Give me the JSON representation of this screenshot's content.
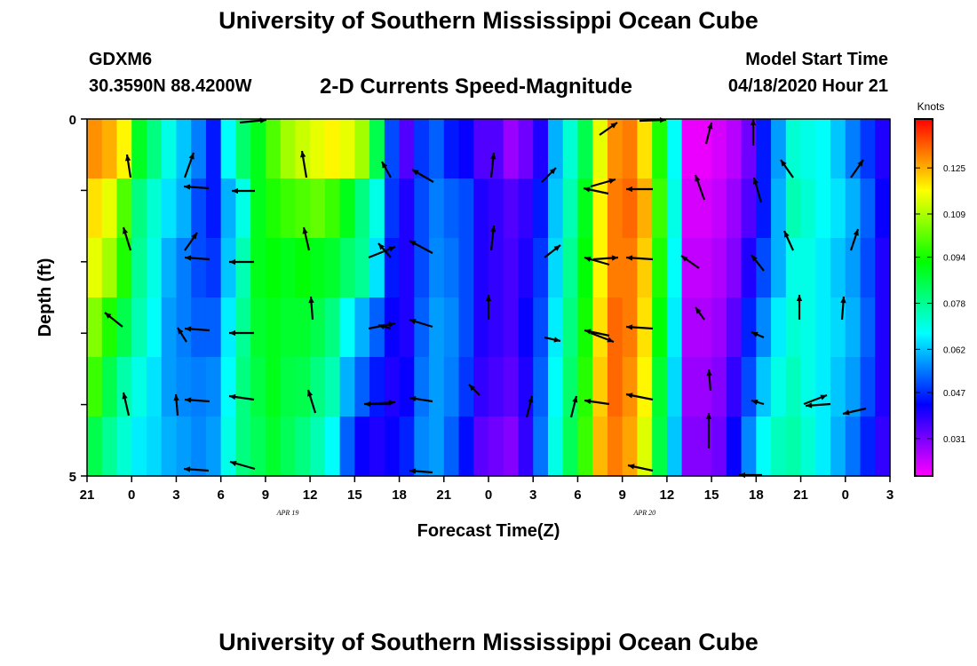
{
  "header": {
    "title": "University of Southern Mississippi Ocean Cube",
    "station": "GDXM6",
    "coords": "30.3590N 88.4200W",
    "subtitle": "2-D Currents Speed-Magnitude",
    "model_start_label": "Model Start Time",
    "model_start_value": "04/18/2020 Hour 21",
    "footer_title": "University of Southern Mississippi Ocean Cube"
  },
  "chart_data": {
    "type": "heatmap",
    "xlabel": "Forecast Time(Z)",
    "ylabel": "Depth (ft)",
    "x_ticks": [
      "21",
      "0",
      "3",
      "6",
      "9",
      "12",
      "15",
      "18",
      "21",
      "0",
      "3",
      "6",
      "9",
      "12",
      "15",
      "18",
      "21",
      "0",
      "3"
    ],
    "date_labels": [
      {
        "text": "APR 19",
        "at_tick": 4.5
      },
      {
        "text": "APR 20",
        "at_tick": 12.5
      }
    ],
    "y_ticks": [
      "0",
      "5"
    ],
    "ylim": [
      0,
      5
    ],
    "colorbar": {
      "title": "Knots",
      "range": [
        0.018,
        0.142
      ],
      "ticks": [
        "0.125",
        "0.109",
        "0.094",
        "0.078",
        "0.062",
        "0.047",
        "0.031"
      ],
      "tick_values": [
        0.125,
        0.109,
        0.094,
        0.078,
        0.062,
        0.047,
        0.031
      ],
      "colors": [
        "#ff00ff",
        "#8000ff",
        "#0000ff",
        "#0080ff",
        "#00ffff",
        "#00ff80",
        "#00ff00",
        "#80ff00",
        "#ffff00",
        "#ff8000",
        "#ff0000"
      ]
    },
    "columns_hours": 54,
    "speed_layers": [
      [
        0.128,
        0.125,
        0.118,
        0.089,
        0.08,
        0.07,
        0.062,
        0.055,
        0.045,
        0.068,
        0.082,
        0.09,
        0.1,
        0.108,
        0.112,
        0.115,
        0.118,
        0.115,
        0.108,
        0.085,
        0.05,
        0.035,
        0.048,
        0.052,
        0.045,
        0.042,
        0.035,
        0.035,
        0.028,
        0.032,
        0.04,
        0.06,
        0.072,
        0.085,
        0.115,
        0.128,
        0.13,
        0.12,
        0.095,
        0.068,
        0.02,
        0.02,
        0.022,
        0.025,
        0.032,
        0.045,
        0.058,
        0.072,
        0.07,
        0.068,
        0.062,
        0.055,
        0.048,
        0.04
      ],
      [
        0.12,
        0.115,
        0.1,
        0.08,
        0.072,
        0.065,
        0.06,
        0.05,
        0.045,
        0.06,
        0.07,
        0.09,
        0.095,
        0.098,
        0.1,
        0.102,
        0.098,
        0.09,
        0.08,
        0.07,
        0.048,
        0.04,
        0.05,
        0.055,
        0.052,
        0.05,
        0.04,
        0.038,
        0.035,
        0.038,
        0.045,
        0.062,
        0.075,
        0.09,
        0.118,
        0.13,
        0.132,
        0.125,
        0.098,
        0.07,
        0.022,
        0.022,
        0.024,
        0.028,
        0.035,
        0.045,
        0.06,
        0.075,
        0.072,
        0.068,
        0.065,
        0.06,
        0.052,
        0.042
      ],
      [
        0.115,
        0.108,
        0.095,
        0.078,
        0.07,
        0.06,
        0.055,
        0.05,
        0.048,
        0.062,
        0.075,
        0.09,
        0.092,
        0.09,
        0.092,
        0.09,
        0.088,
        0.082,
        0.078,
        0.065,
        0.045,
        0.04,
        0.05,
        0.056,
        0.054,
        0.05,
        0.04,
        0.038,
        0.036,
        0.04,
        0.048,
        0.064,
        0.078,
        0.092,
        0.118,
        0.13,
        0.13,
        0.122,
        0.095,
        0.068,
        0.024,
        0.024,
        0.026,
        0.03,
        0.04,
        0.05,
        0.06,
        0.07,
        0.07,
        0.066,
        0.062,
        0.058,
        0.05,
        0.04
      ],
      [
        0.105,
        0.095,
        0.085,
        0.075,
        0.068,
        0.058,
        0.055,
        0.052,
        0.052,
        0.066,
        0.078,
        0.088,
        0.09,
        0.088,
        0.088,
        0.085,
        0.08,
        0.068,
        0.06,
        0.052,
        0.042,
        0.04,
        0.052,
        0.058,
        0.056,
        0.05,
        0.04,
        0.038,
        0.036,
        0.042,
        0.05,
        0.066,
        0.08,
        0.094,
        0.12,
        0.132,
        0.13,
        0.12,
        0.092,
        0.066,
        0.026,
        0.026,
        0.028,
        0.034,
        0.046,
        0.056,
        0.066,
        0.072,
        0.07,
        0.066,
        0.064,
        0.06,
        0.052,
        0.04
      ],
      [
        0.098,
        0.085,
        0.076,
        0.07,
        0.065,
        0.058,
        0.056,
        0.055,
        0.056,
        0.068,
        0.08,
        0.086,
        0.09,
        0.086,
        0.085,
        0.08,
        0.075,
        0.06,
        0.052,
        0.045,
        0.04,
        0.042,
        0.054,
        0.058,
        0.055,
        0.048,
        0.038,
        0.036,
        0.034,
        0.04,
        0.052,
        0.068,
        0.082,
        0.096,
        0.122,
        0.132,
        0.128,
        0.118,
        0.088,
        0.064,
        0.028,
        0.028,
        0.03,
        0.038,
        0.05,
        0.062,
        0.07,
        0.074,
        0.07,
        0.066,
        0.062,
        0.058,
        0.05,
        0.04
      ],
      [
        0.085,
        0.078,
        0.072,
        0.066,
        0.064,
        0.06,
        0.058,
        0.056,
        0.058,
        0.07,
        0.08,
        0.084,
        0.088,
        0.084,
        0.08,
        0.075,
        0.068,
        0.052,
        0.042,
        0.04,
        0.042,
        0.046,
        0.056,
        0.058,
        0.052,
        0.044,
        0.034,
        0.032,
        0.03,
        0.038,
        0.054,
        0.07,
        0.084,
        0.098,
        0.124,
        0.13,
        0.126,
        0.114,
        0.086,
        0.062,
        0.03,
        0.03,
        0.032,
        0.042,
        0.056,
        0.068,
        0.074,
        0.076,
        0.072,
        0.066,
        0.06,
        0.054,
        0.046,
        0.038
      ]
    ],
    "arrow_rows": [
      [
        null,
        null,
        null,
        null,
        null,
        null,
        null,
        null,
        null,
        null,
        null,
        null,
        null,
        null,
        null,
        null,
        null,
        null,
        null,
        null,
        null,
        null,
        null,
        null,
        null,
        null,
        null,
        null,
        null,
        null,
        null,
        null,
        null,
        null,
        null,
        null,
        null,
        null,
        null,
        null,
        null,
        null,
        null,
        null,
        null,
        null,
        null,
        null,
        null,
        null,
        null,
        null,
        null,
        null
      ],
      [
        [
          [
            3,
            -30
          ],
          [
            15,
            -15
          ],
          [
            20,
            -34
          ],
          [
            22,
            -2
          ],
          [
            30,
            -4
          ],
          [
            17,
            -40
          ],
          [
            30,
            -25
          ],
          [
            28,
            -25
          ],
          [
            33,
            -18
          ],
          [
            12,
            -38
          ],
          [
            24,
            -30
          ],
          [
            29,
            -5
          ],
          [
            36,
            -2
          ],
          [
            14,
            -39
          ],
          [
            8,
            -45
          ]
        ]
      ],
      [],
      [],
      [],
      []
    ],
    "arrows_top": [
      [
        175,
        0
      ],
      [
        285,
        0
      ],
      [
        685,
        -18
      ],
      [
        735,
        0
      ],
      [
        795,
        -18
      ],
      [
        848,
        -40
      ]
    ],
    "arrows": [
      [
        147,
        200,
        -4,
        -26
      ],
      [
        208,
        200,
        10,
        -28
      ],
      [
        235,
        212,
        -28,
        -2
      ],
      [
        287,
        215,
        -26,
        0
      ],
      [
        345,
        200,
        -5,
        -30
      ],
      [
        440,
        200,
        -10,
        -18
      ],
      [
        488,
        205,
        -24,
        -14
      ],
      [
        553,
        200,
        3,
        -28
      ],
      [
        610,
        205,
        16,
        -16
      ],
      [
        665,
        210,
        28,
        -8
      ],
      [
        685,
        218,
        -28,
        -6
      ],
      [
        735,
        213,
        -30,
        0
      ],
      [
        793,
        225,
        -10,
        -28
      ],
      [
        857,
        228,
        -8,
        -28
      ],
      [
        893,
        200,
        -14,
        -20
      ],
      [
        958,
        200,
        14,
        -20
      ],
      [
        147,
        282,
        -8,
        -26
      ],
      [
        208,
        282,
        14,
        -20
      ],
      [
        236,
        292,
        -28,
        -2
      ],
      [
        286,
        295,
        -28,
        0
      ],
      [
        348,
        282,
        -6,
        -26
      ],
      [
        415,
        290,
        30,
        -12
      ],
      [
        440,
        290,
        -14,
        -16
      ],
      [
        487,
        285,
        -26,
        -14
      ],
      [
        553,
        282,
        3,
        -28
      ],
      [
        613,
        290,
        18,
        -14
      ],
      [
        668,
        292,
        28,
        -2
      ],
      [
        686,
        298,
        -28,
        -8
      ],
      [
        735,
        292,
        -30,
        -2
      ],
      [
        787,
        302,
        -20,
        -14
      ],
      [
        860,
        305,
        -14,
        -18
      ],
      [
        893,
        282,
        -10,
        -22
      ],
      [
        958,
        282,
        8,
        -24
      ],
      [
        138,
        368,
        -20,
        -16
      ],
      [
        210,
        385,
        -10,
        -16
      ],
      [
        236,
        372,
        -28,
        -2
      ],
      [
        286,
        375,
        -28,
        0
      ],
      [
        352,
        360,
        -2,
        -26
      ],
      [
        415,
        370,
        30,
        -6
      ],
      [
        440,
        370,
        -14,
        -4
      ],
      [
        487,
        368,
        -26,
        -8
      ],
      [
        550,
        360,
        0,
        -28
      ],
      [
        613,
        380,
        18,
        4
      ],
      [
        665,
        375,
        26,
        10
      ],
      [
        686,
        378,
        -28,
        -6
      ],
      [
        735,
        370,
        -30,
        -2
      ],
      [
        793,
        360,
        -10,
        -14
      ],
      [
        860,
        380,
        -14,
        -6
      ],
      [
        900,
        360,
        0,
        -28
      ],
      [
        948,
        360,
        2,
        -26
      ],
      [
        145,
        468,
        -6,
        -26
      ],
      [
        200,
        468,
        -2,
        -24
      ],
      [
        236,
        452,
        -28,
        -2
      ],
      [
        286,
        450,
        -28,
        -4
      ],
      [
        355,
        465,
        -8,
        -26
      ],
      [
        415,
        455,
        30,
        -2
      ],
      [
        440,
        455,
        -30,
        0
      ],
      [
        487,
        452,
        -26,
        -4
      ],
      [
        540,
        445,
        -12,
        -12
      ],
      [
        593,
        470,
        6,
        -24
      ],
      [
        643,
        470,
        6,
        -24
      ],
      [
        686,
        455,
        -28,
        -4
      ],
      [
        735,
        450,
        -30,
        -6
      ],
      [
        800,
        440,
        -2,
        -24
      ],
      [
        860,
        455,
        -14,
        -4
      ],
      [
        905,
        455,
        26,
        -10
      ],
      [
        935,
        455,
        -28,
        2
      ],
      [
        975,
        460,
        -26,
        6
      ]
    ],
    "arrows_bottom": [
      [
        235,
        530,
        -28,
        -2
      ],
      [
        287,
        528,
        -28,
        -8
      ],
      [
        487,
        532,
        -26,
        -2
      ],
      [
        735,
        530,
        -28,
        -6
      ],
      [
        798,
        505,
        0,
        -40
      ],
      [
        858,
        535,
        -26,
        0
      ]
    ]
  }
}
